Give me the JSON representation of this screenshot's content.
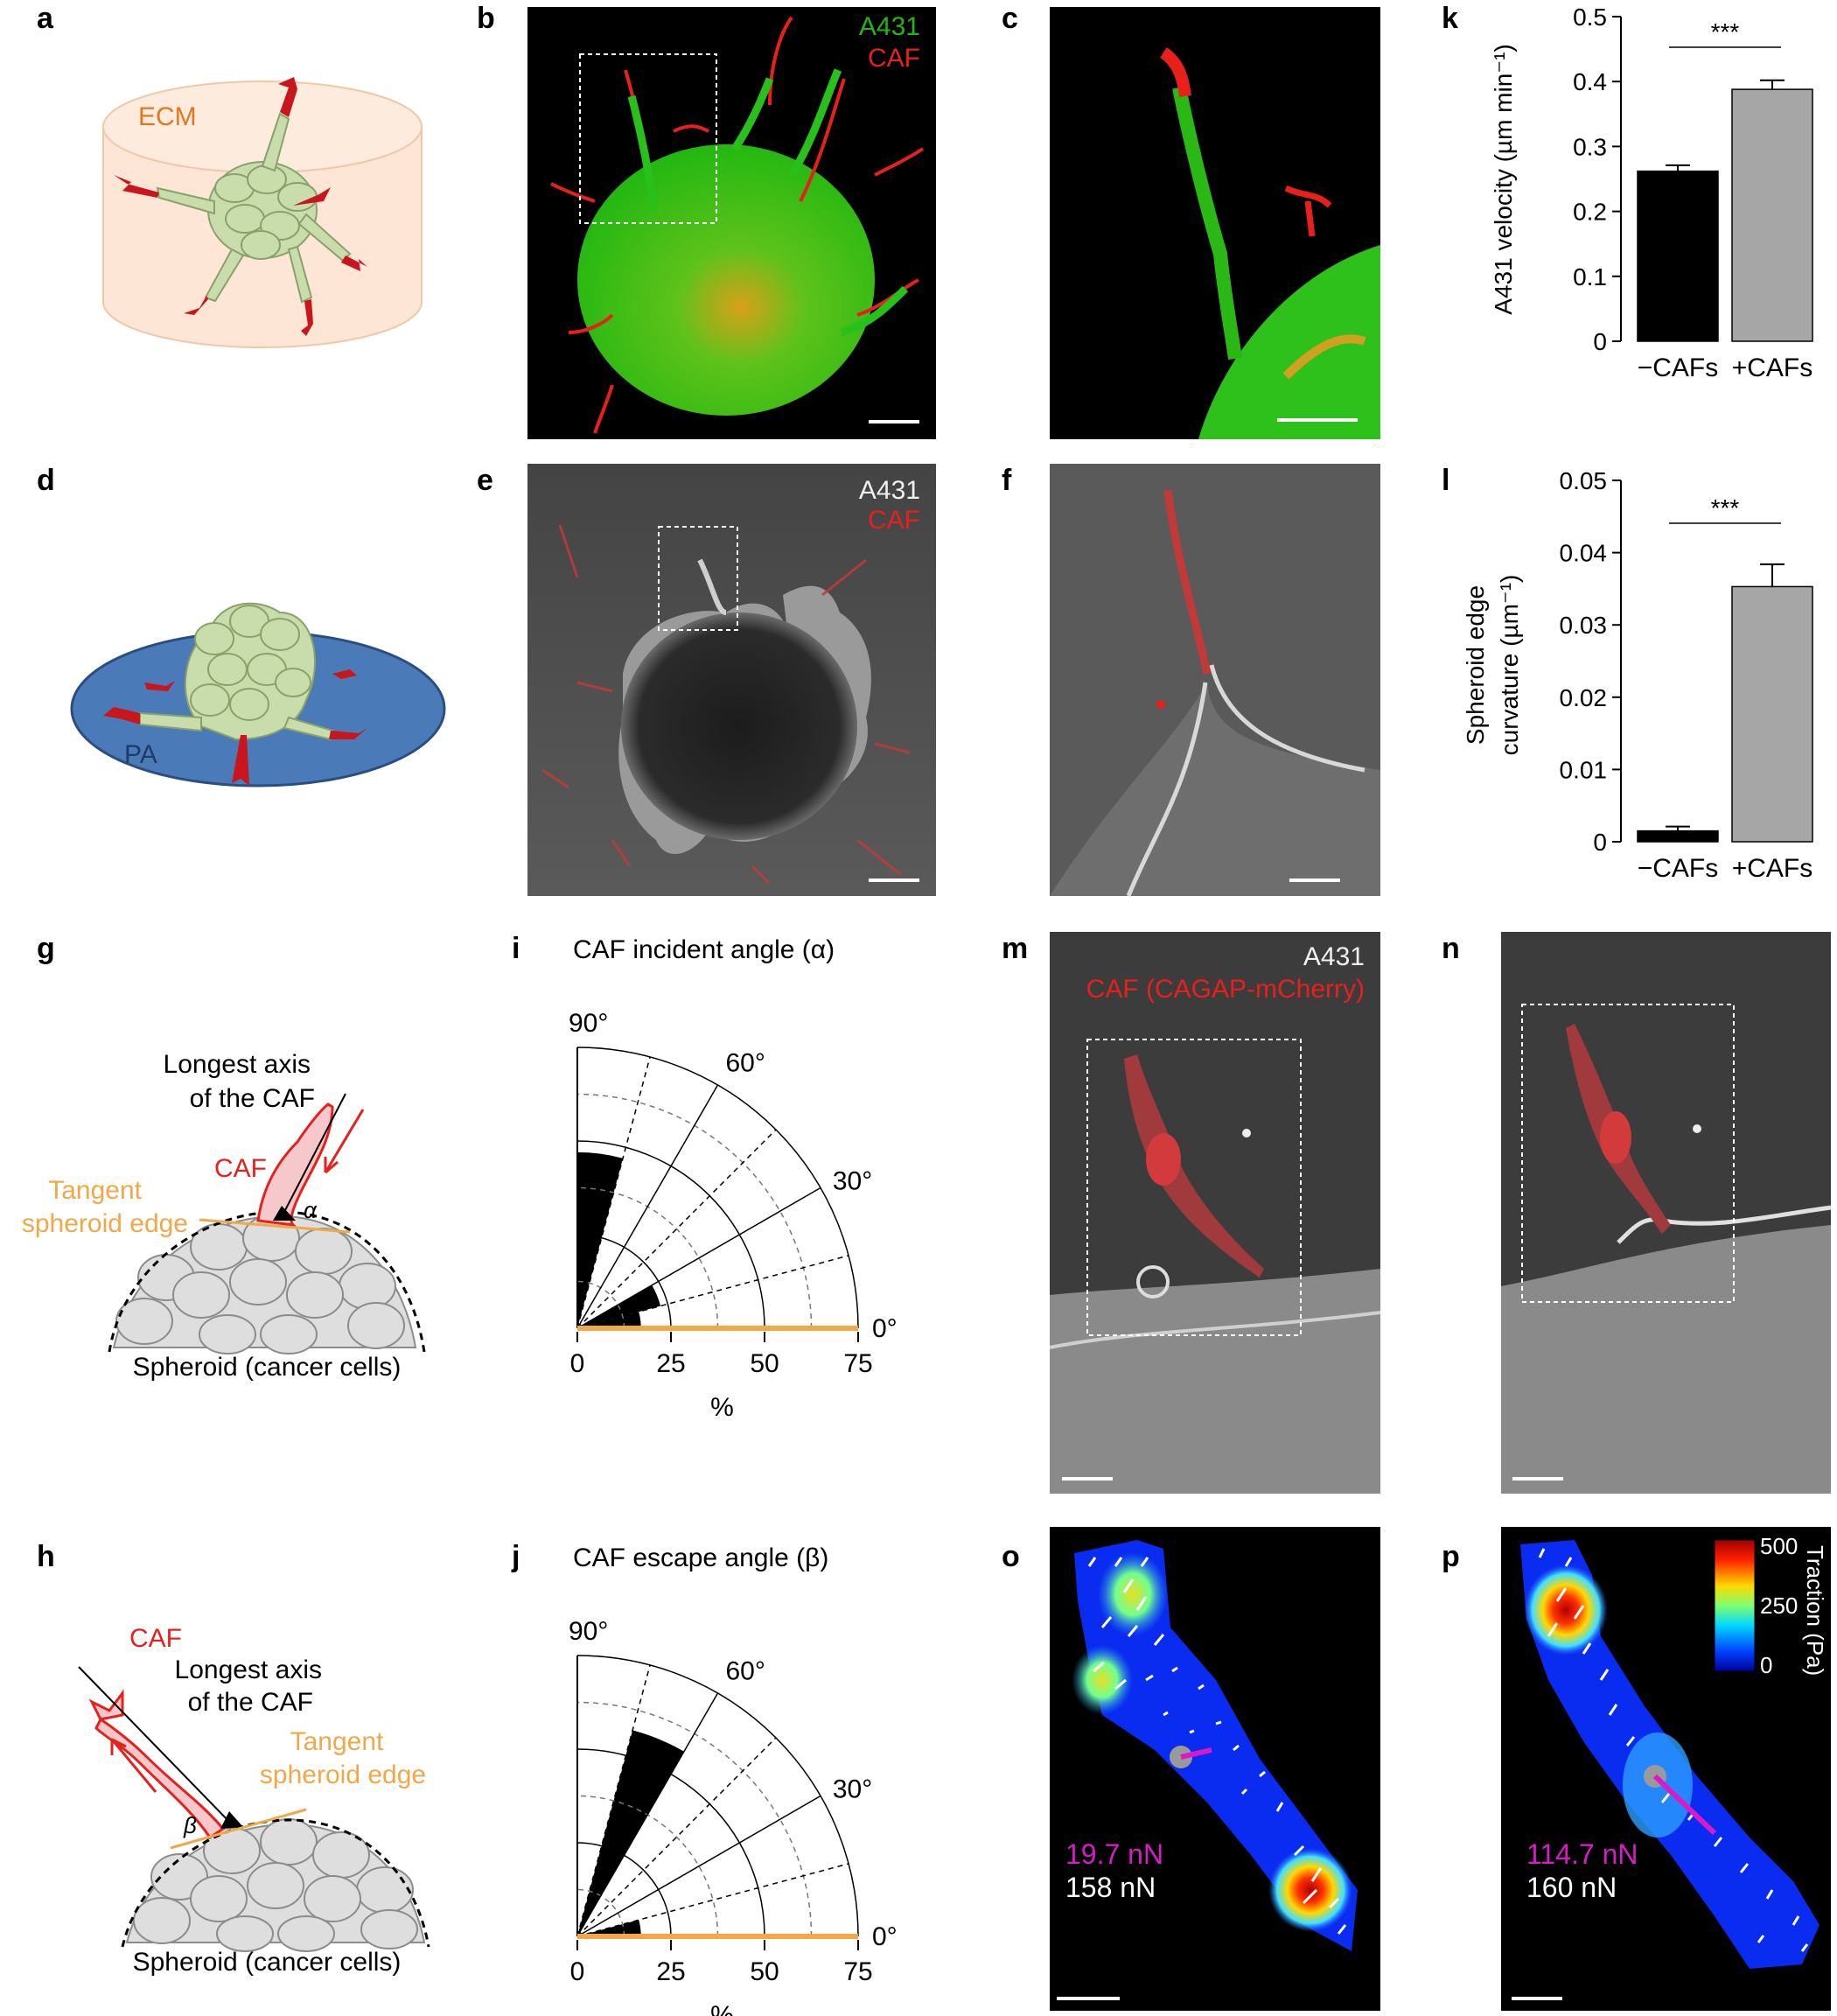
{
  "panel_labels": {
    "a": "a",
    "b": "b",
    "c": "c",
    "d": "d",
    "e": "e",
    "f": "f",
    "g": "g",
    "h": "h",
    "i": "i",
    "j": "j",
    "k": "k",
    "l": "l",
    "m": "m",
    "n": "n",
    "o": "o",
    "p": "p"
  },
  "colors": {
    "a431_green": "#22b515",
    "caf_red": "#e8201c",
    "tangent_orange": "#f0a848",
    "pa_blue": "#4a7ab8",
    "ecm_fill": "#fde6d6",
    "ecm_text": "#e07820",
    "cell_green": "#c9dcab",
    "magenta": "#d81bc6"
  },
  "panel_a": {
    "ecm": "ECM"
  },
  "panel_b": {
    "legend_a431": "A431",
    "legend_caf": "CAF"
  },
  "panel_d": {
    "pa": "PA"
  },
  "panel_e": {
    "legend_a431": "A431",
    "legend_caf": "CAF"
  },
  "panel_g": {
    "axis_label_1": "Longest axis",
    "axis_label_2": "of the CAF",
    "caf": "CAF",
    "tangent_1": "Tangent",
    "tangent_2": "spheroid edge",
    "angle": "α",
    "spheroid": "Spheroid (cancer cells)"
  },
  "panel_h": {
    "caf": "CAF",
    "axis_label_1": "Longest axis",
    "axis_label_2": "of the CAF",
    "tangent_1": "Tangent",
    "tangent_2": "spheroid edge",
    "angle": "β",
    "spheroid": "Spheroid (cancer cells)"
  },
  "panel_i": {
    "title": "CAF incident angle (α)",
    "angle_90": "90°",
    "angle_60": "60°",
    "angle_30": "30°",
    "angle_0": "0°",
    "ticks": [
      "0",
      "25",
      "50",
      "75"
    ],
    "xlabel": "%"
  },
  "panel_j": {
    "title": "CAF escape angle (β)",
    "angle_90": "90°",
    "angle_60": "60°",
    "angle_30": "30°",
    "angle_0": "0°",
    "ticks": [
      "0",
      "25",
      "50",
      "75"
    ],
    "xlabel": "%"
  },
  "panel_m": {
    "legend_a431": "A431",
    "legend_caf": "CAF (CAGAP-mCherry)"
  },
  "panel_o": {
    "force_magenta": "19.7 nN",
    "force_white": "158 nN"
  },
  "panel_p": {
    "force_magenta": "114.7 nN",
    "force_white": "160 nN",
    "colorbar_label": "Traction (Pa)",
    "colorbar_ticks": [
      "500",
      "250",
      "0"
    ]
  },
  "chart_data": [
    {
      "panel": "i",
      "type": "polar_bar",
      "title": "CAF incident angle (α)",
      "angle_bins": [
        "0-15°",
        "15-30°",
        "30-45°",
        "45-60°",
        "60-75°",
        "75-90°"
      ],
      "values": [
        17,
        23,
        0,
        0,
        0,
        47
      ],
      "rlim": [
        0,
        75
      ],
      "rticks": [
        0,
        25,
        50,
        75
      ],
      "xlabel": "%"
    },
    {
      "panel": "j",
      "type": "polar_bar",
      "title": "CAF escape angle (β)",
      "angle_bins": [
        "0-15°",
        "15-30°",
        "30-45°",
        "45-60°",
        "60-75°",
        "75-90°"
      ],
      "values": [
        17,
        0,
        0,
        0,
        57,
        0
      ],
      "rlim": [
        0,
        75
      ],
      "rticks": [
        0,
        25,
        50,
        75
      ],
      "xlabel": "%"
    },
    {
      "panel": "k",
      "type": "bar",
      "categories": [
        "−CAFs",
        "+CAFs"
      ],
      "values": [
        0.262,
        0.388
      ],
      "errors": [
        0.009,
        0.014
      ],
      "ylabel": "A431 velocity (µm min⁻¹)",
      "yticks": [
        "0",
        "0.1",
        "0.2",
        "0.3",
        "0.4",
        "0.5"
      ],
      "ylim": [
        0,
        0.5
      ],
      "significance": "***",
      "bar_colors": [
        "#000000",
        "#a6a6a6"
      ]
    },
    {
      "panel": "l",
      "type": "bar",
      "categories": [
        "−CAFs",
        "+CAFs"
      ],
      "values": [
        0.0015,
        0.0353
      ],
      "errors": [
        0.0006,
        0.0031
      ],
      "ylabel_1": "Spheroid edge",
      "ylabel_2": "curvature (µm⁻¹)",
      "yticks": [
        "0",
        "0.01",
        "0.02",
        "0.03",
        "0.04",
        "0.05"
      ],
      "ylim": [
        0,
        0.05
      ],
      "significance": "***",
      "bar_colors": [
        "#000000",
        "#a6a6a6"
      ]
    }
  ]
}
